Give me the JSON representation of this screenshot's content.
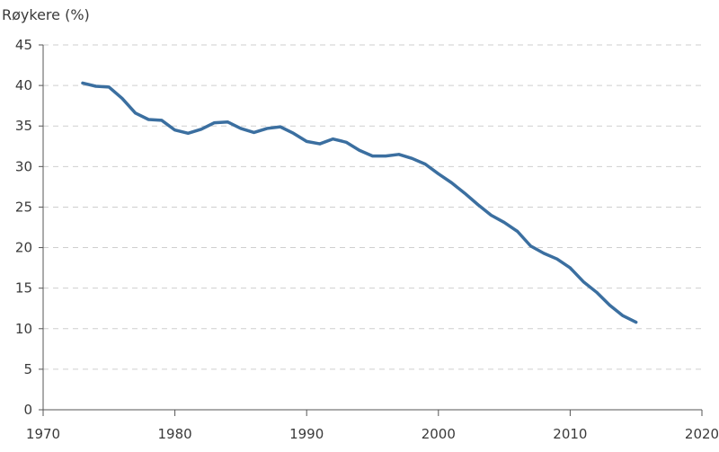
{
  "chart_data": {
    "type": "line",
    "title": "",
    "ylabel": "Røykere (%)",
    "xlabel": "",
    "xlim": [
      1970,
      2020
    ],
    "ylim": [
      0,
      45
    ],
    "xticks": [
      1970,
      1980,
      1990,
      2000,
      2010,
      2020
    ],
    "yticks": [
      0,
      5,
      10,
      15,
      20,
      25,
      30,
      35,
      40,
      45
    ],
    "grid": "horizontal-dashed",
    "color": "#3b6fa0",
    "series": [
      {
        "x": [
          1973,
          1974,
          1975,
          1976,
          1977,
          1978,
          1979,
          1980,
          1981,
          1982,
          1983,
          1984,
          1985,
          1986,
          1987,
          1988,
          1989,
          1990,
          1991,
          1992,
          1993,
          1994,
          1995,
          1996,
          1997,
          1998,
          1999,
          2000,
          2001,
          2002,
          2003,
          2004,
          2005,
          2006,
          2007,
          2008,
          2009,
          2010,
          2011,
          2012,
          2013,
          2014,
          2015
        ],
        "values": [
          40.3,
          39.9,
          39.8,
          38.4,
          36.6,
          35.8,
          35.7,
          34.5,
          34.1,
          34.6,
          35.4,
          35.5,
          34.7,
          34.2,
          34.7,
          34.9,
          34.1,
          33.1,
          32.8,
          33.4,
          33.0,
          32.0,
          31.3,
          31.3,
          31.5,
          31.0,
          30.3,
          29.1,
          28.0,
          26.7,
          25.3,
          24.0,
          23.1,
          22.0,
          20.2,
          19.3,
          18.6,
          17.5,
          15.8,
          14.5,
          12.9,
          11.6,
          10.8
        ]
      }
    ]
  }
}
